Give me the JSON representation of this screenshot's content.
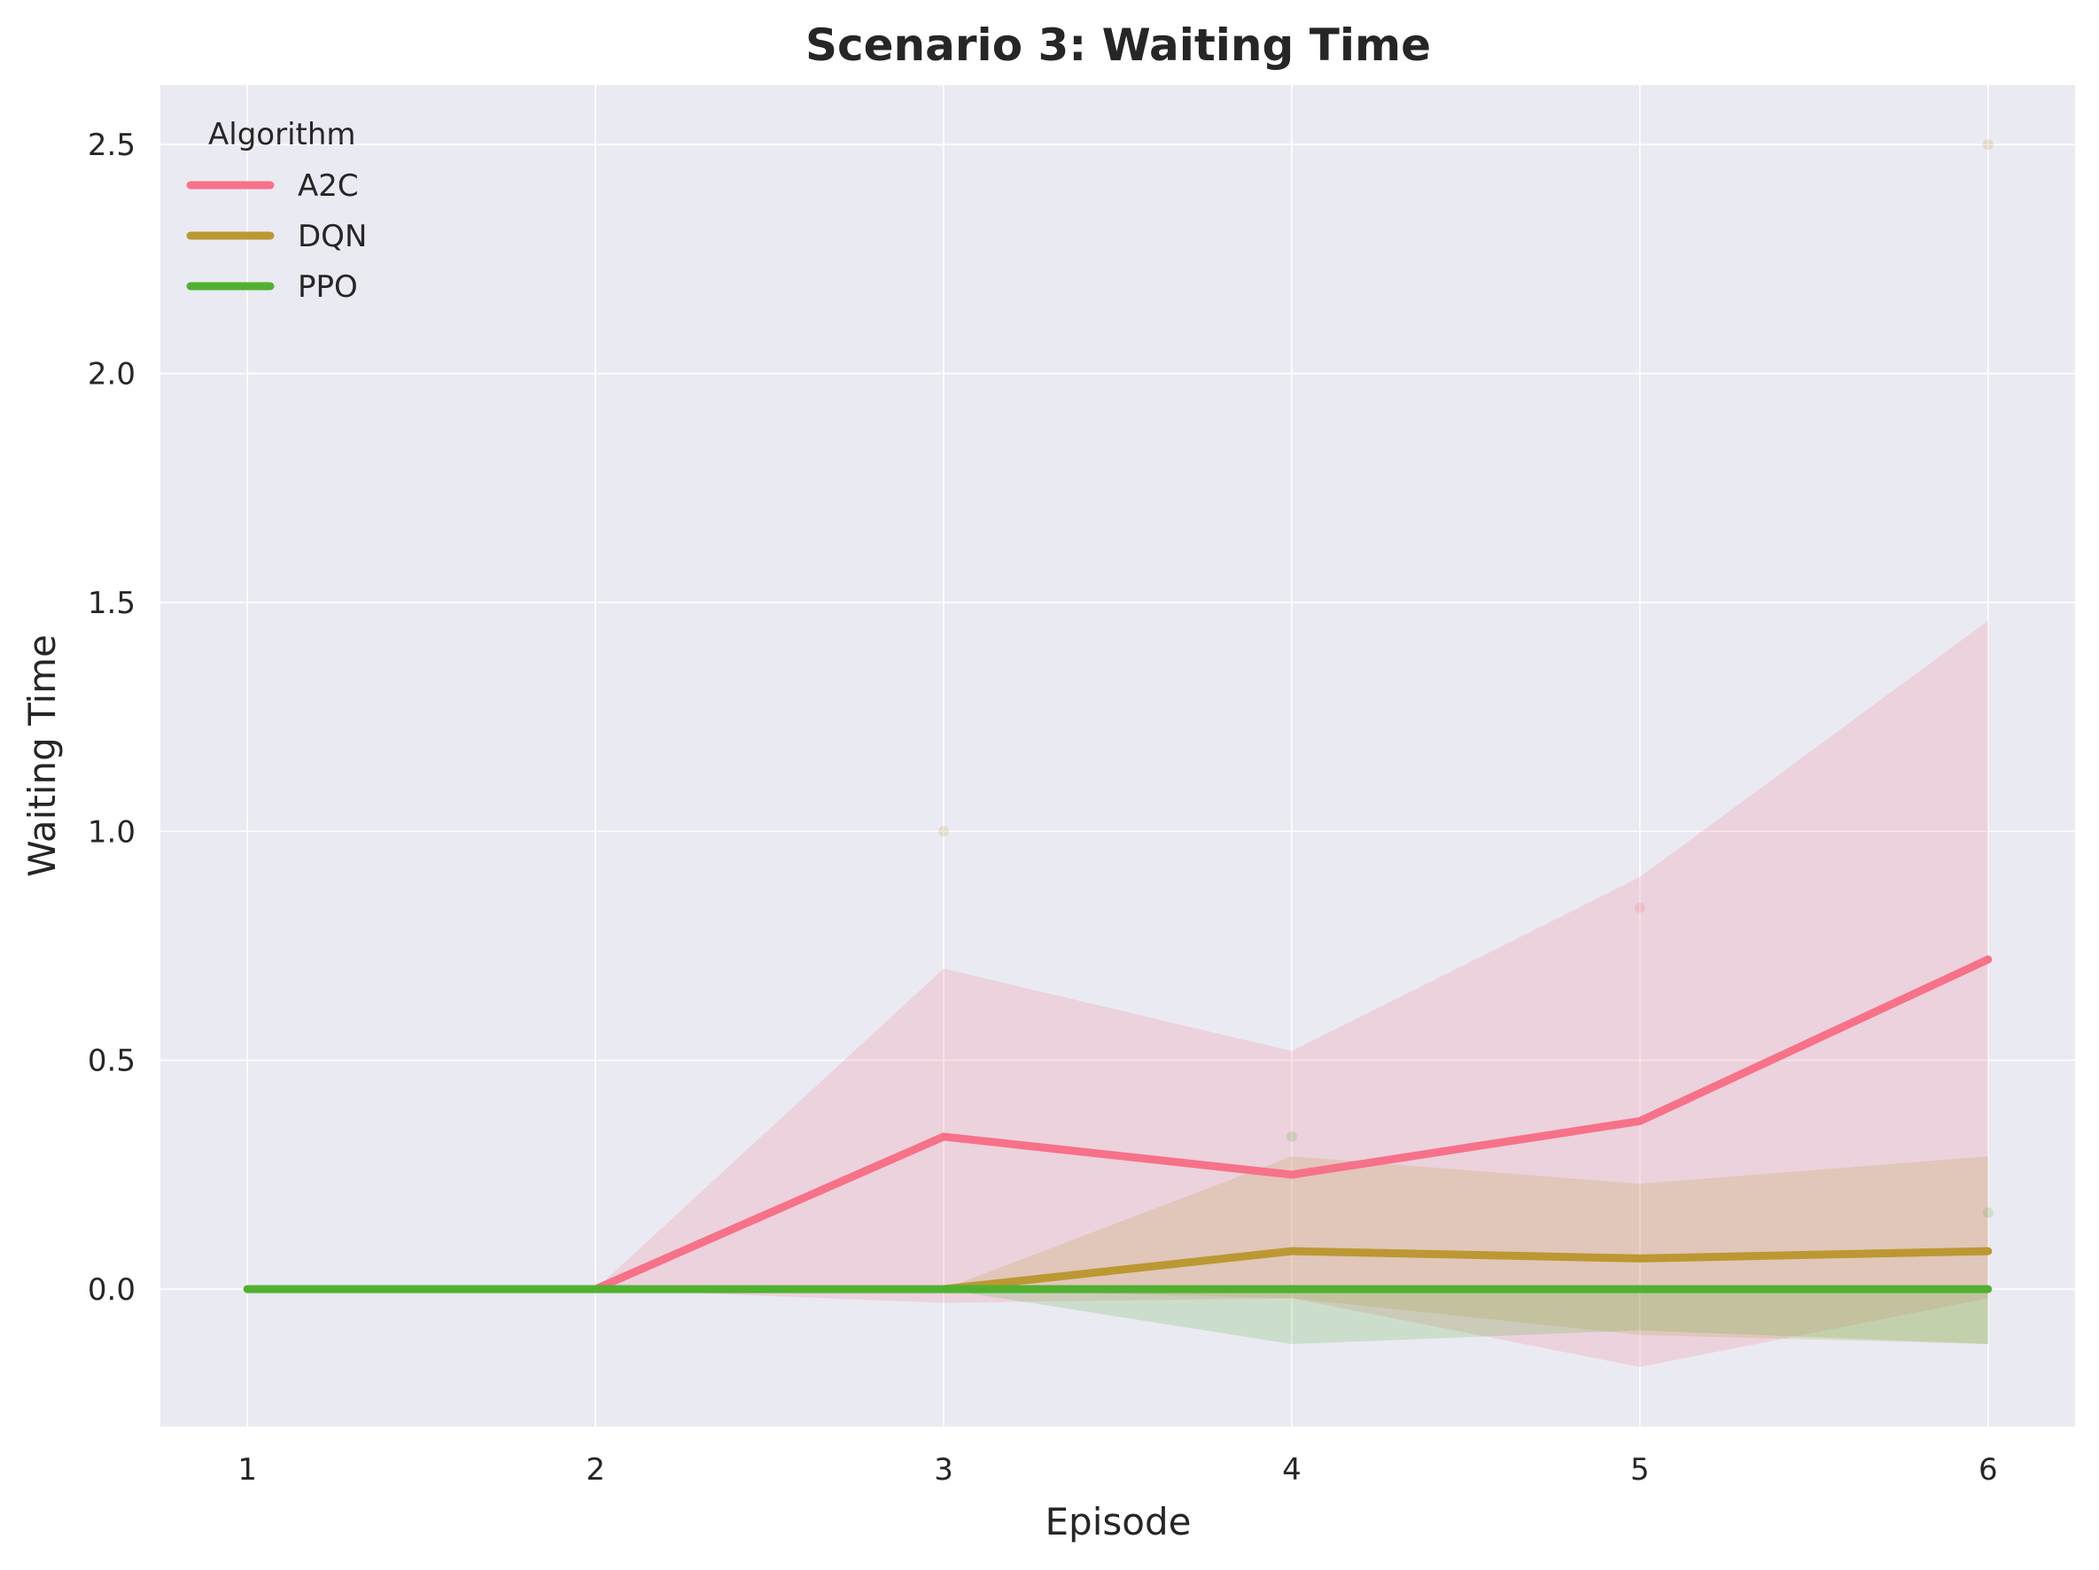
{
  "chart_data": {
    "type": "line",
    "title": "Scenario 3: Waiting Time",
    "xlabel": "Episode",
    "ylabel": "Waiting Time",
    "x": [
      1,
      2,
      3,
      4,
      5,
      6
    ],
    "xlim": [
      0.75,
      6.25
    ],
    "ylim": [
      -0.3,
      2.63
    ],
    "xticks": [
      1,
      2,
      3,
      4,
      5,
      6
    ],
    "yticks": [
      0.0,
      0.5,
      1.0,
      1.5,
      2.0,
      2.5
    ],
    "ytick_labels": [
      "0.0",
      "0.5",
      "1.0",
      "1.5",
      "2.0",
      "2.5"
    ],
    "grid": true,
    "legend": {
      "title": "Algorithm",
      "placement": "top-left"
    },
    "series": [
      {
        "name": "A2C",
        "color": "#f77189",
        "values": [
          0,
          0,
          0.333,
          0.25,
          0.367,
          0.72
        ],
        "upper": [
          0,
          0,
          0.7,
          0.52,
          0.9,
          1.46
        ],
        "lower": [
          0,
          0,
          -0.03,
          -0.02,
          -0.17,
          -0.02
        ]
      },
      {
        "name": "DQN",
        "color": "#bb9832",
        "values": [
          0,
          0,
          0,
          0.083,
          0.067,
          0.083
        ],
        "upper": [
          0,
          0,
          0,
          0.29,
          0.23,
          0.29
        ],
        "lower": [
          0,
          0,
          0,
          -0.02,
          -0.1,
          -0.12
        ]
      },
      {
        "name": "PPO",
        "color": "#50b131",
        "values": [
          0,
          0,
          0,
          0,
          0,
          0
        ],
        "upper": [
          0,
          0,
          0,
          0,
          0,
          0
        ],
        "lower": [
          0,
          0,
          0,
          -0.12,
          -0.09,
          -0.12
        ]
      }
    ],
    "points": [
      {
        "x": 3,
        "y": 1.0,
        "color": "#bb9832"
      },
      {
        "x": 4,
        "y": 0.333,
        "color": "#50b131"
      },
      {
        "x": 5,
        "y": 0.833,
        "color": "#f77189"
      },
      {
        "x": 6,
        "y": 2.5,
        "color": "#bb9832"
      },
      {
        "x": 6,
        "y": 0.167,
        "color": "#50b131"
      }
    ]
  }
}
